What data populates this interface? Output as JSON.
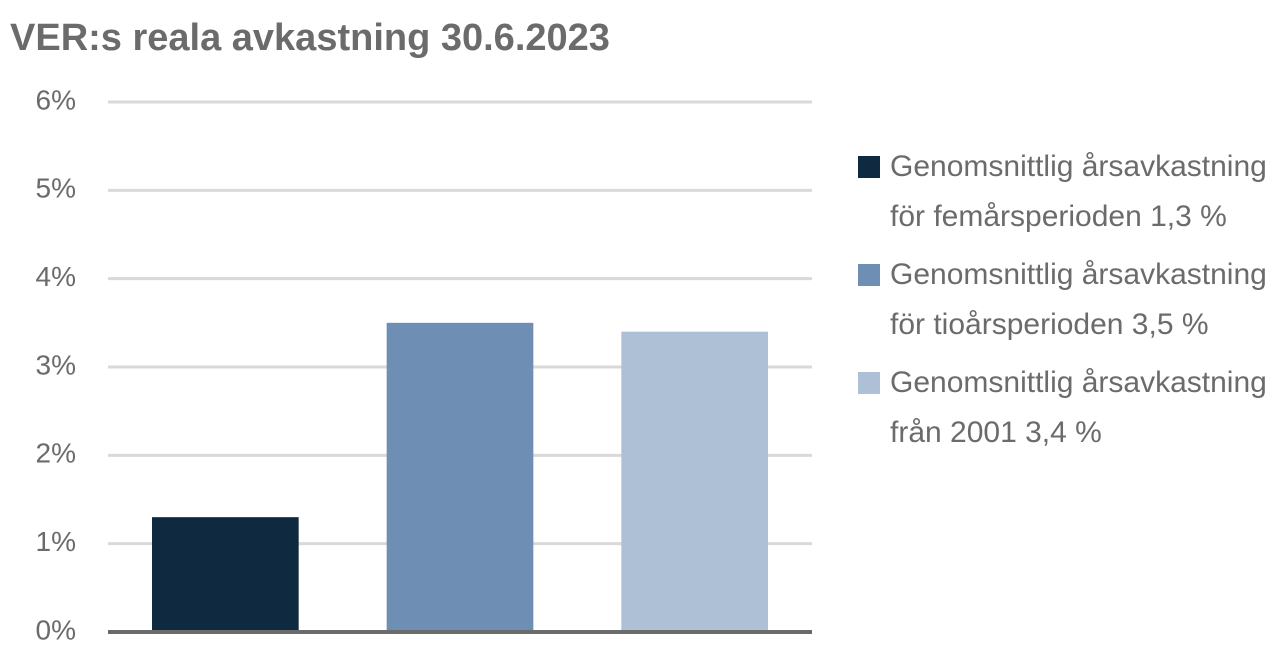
{
  "chart_data": {
    "type": "bar",
    "title": "VER:s reala avkastning 30.6.2023",
    "categories": [
      null
    ],
    "series": [
      {
        "name": "Genomsnittlig årsavkastning för femårsperioden 1,3 %",
        "color": "#0f2a40",
        "values": [
          1.3
        ]
      },
      {
        "name": "Genomsnittlig årsavkastning för tioårsperioden 3,5 %",
        "color": "#6e8fb3",
        "values": [
          3.5
        ]
      },
      {
        "name": "Genomsnittlig årsavkastning från 2001 3,4 %",
        "color": "#adc0d6",
        "values": [
          3.4
        ]
      }
    ],
    "ylim": [
      0,
      6
    ],
    "yticks": [
      {
        "value": 0,
        "label": "0%"
      },
      {
        "value": 1,
        "label": "1%"
      },
      {
        "value": 2,
        "label": "2%"
      },
      {
        "value": 3,
        "label": "3%"
      },
      {
        "value": 4,
        "label": "4%"
      },
      {
        "value": 5,
        "label": "5%"
      },
      {
        "value": 6,
        "label": "6%"
      }
    ],
    "grid": true,
    "legend": "right"
  }
}
